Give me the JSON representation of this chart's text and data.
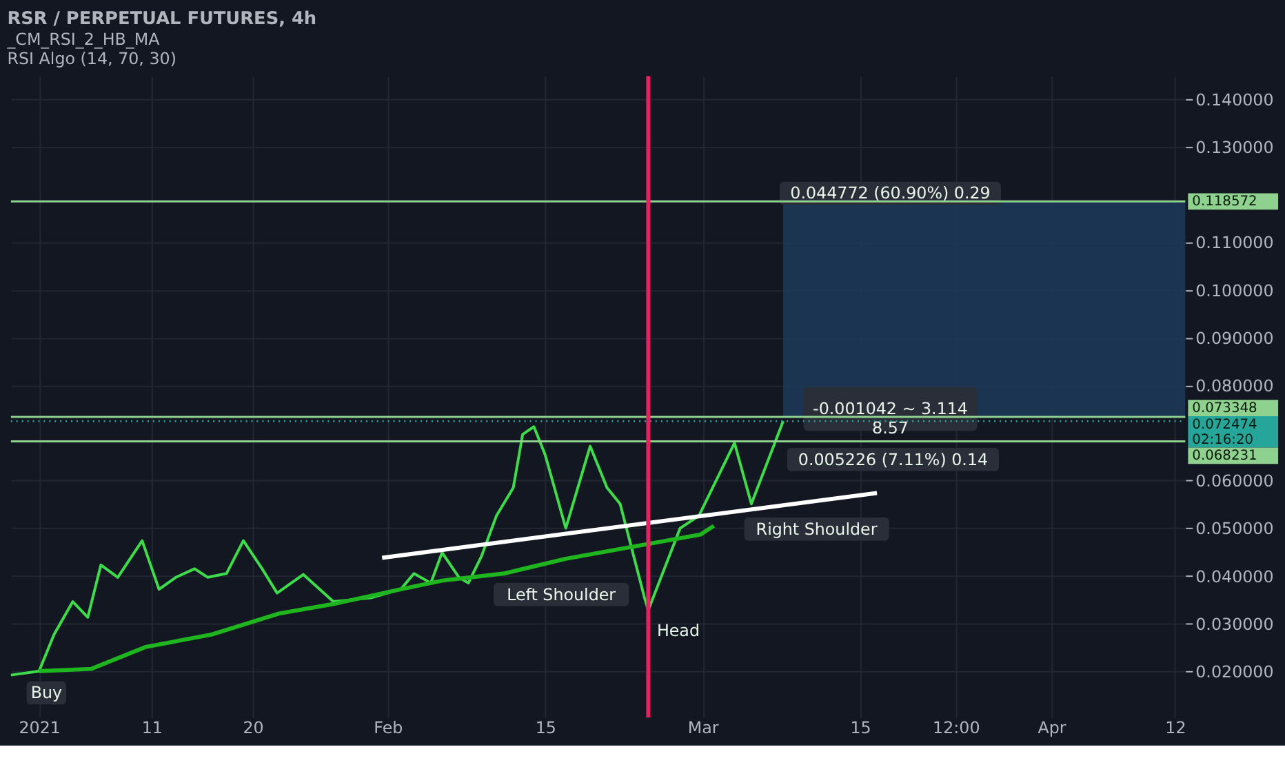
{
  "chart_data": {
    "type": "line",
    "title": "RSR / PERPETUAL FUTURES, 4h",
    "subtitle": [
      "_CM_RSI_2_HB_MA",
      "RSI Algo (14, 70, 30)"
    ],
    "xlim": [
      "2020-12-29T12:00",
      "2021-04-12T22:00"
    ],
    "xticks": [
      {
        "value": "2021-01-01",
        "label": "2021"
      },
      {
        "value": "2021-01-11",
        "label": "11"
      },
      {
        "value": "2021-01-20",
        "label": "20"
      },
      {
        "value": "2021-02-01",
        "label": "Feb"
      },
      {
        "value": "2021-02-15",
        "label": "15"
      },
      {
        "value": "2021-03-01",
        "label": "Mar"
      },
      {
        "value": "2021-03-15",
        "label": "15"
      },
      {
        "value": "2021-03-23T12:00",
        "label": "12:00"
      },
      {
        "value": "2021-04-01",
        "label": "Apr"
      },
      {
        "value": "2021-04-12",
        "label": "12"
      }
    ],
    "ylim": [
      0.0103,
      0.1449
    ],
    "yticks": [
      {
        "value": 0.02,
        "label": "0.020000"
      },
      {
        "value": 0.03,
        "label": "0.030000"
      },
      {
        "value": 0.04,
        "label": "0.040000"
      },
      {
        "value": 0.05,
        "label": "0.050000"
      },
      {
        "value": 0.06,
        "label": "0.060000"
      },
      {
        "value": 0.08,
        "label": "0.080000"
      },
      {
        "value": 0.09,
        "label": "0.090000"
      },
      {
        "value": 0.1,
        "label": "0.100000"
      },
      {
        "value": 0.11,
        "label": "0.110000"
      },
      {
        "value": 0.13,
        "label": "0.130000"
      },
      {
        "value": 0.14,
        "label": "0.140000"
      }
    ],
    "series": [
      {
        "color": "#3ddc4a",
        "x": [
          "2020-12-29T12:00",
          "2021-01-01",
          "2021-01-02T08:00",
          "2021-01-04",
          "2021-01-05T08:00",
          "2021-01-06T12:00",
          "2021-01-08",
          "2021-01-10T04:00",
          "2021-01-11T16:00",
          "2021-01-13T04:00",
          "2021-01-14T20:00",
          "2021-01-16",
          "2021-01-17T16:00",
          "2021-01-19T04:00",
          "2021-01-20T20:00",
          "2021-01-22T04:00",
          "2021-01-24T12:00",
          "2021-01-27T04:00",
          "2021-01-30T12:00",
          "2021-02-02T04:00",
          "2021-02-03T08:00",
          "2021-02-04T20:00",
          "2021-02-05T20:00",
          "2021-02-07T08:00",
          "2021-02-08T04:00",
          "2021-02-09T08:00",
          "2021-02-10T16:00",
          "2021-02-12T04:00",
          "2021-02-13",
          "2021-02-14",
          "2021-02-15",
          "2021-02-16T20:00",
          "2021-02-19",
          "2021-02-20T12:00",
          "2021-02-21T16:00",
          "2021-02-23T20:00",
          "2021-02-24T04:00",
          "2021-02-27",
          "2021-02-28T16:00",
          "2021-03-03T20:00",
          "2021-03-05T08:00",
          "2021-03-08T04:00"
        ],
        "values": [
          0.0192,
          0.02,
          0.0277,
          0.0346,
          0.0313,
          0.0423,
          0.0397,
          0.0474,
          0.0372,
          0.0397,
          0.0415,
          0.0397,
          0.0405,
          0.0474,
          0.0415,
          0.0364,
          0.0403,
          0.0346,
          0.0354,
          0.0372,
          0.0405,
          0.0385,
          0.0449,
          0.0397,
          0.0385,
          0.0441,
          0.0526,
          0.0585,
          0.0697,
          0.0713,
          0.0654,
          0.05,
          0.0672,
          0.0585,
          0.0551,
          0.0354,
          0.0328,
          0.05,
          0.0526,
          0.0679,
          0.0551,
          0.0725
        ]
      },
      {
        "color": "#1fb51f",
        "x": [
          "2021-01-01",
          "2021-01-05T16:00",
          "2021-01-10T12:00",
          "2021-01-16T08:00",
          "2021-01-22T08:00",
          "2021-01-27T04:00",
          "2021-02-02T04:00",
          "2021-02-05T20:00",
          "2021-02-11T08:00",
          "2021-02-16T20:00",
          "2021-02-28T20:00",
          "2021-03-02"
        ],
        "values": [
          0.02,
          0.0205,
          0.0251,
          0.0277,
          0.0321,
          0.0341,
          0.0372,
          0.039,
          0.0405,
          0.0436,
          0.0487,
          0.0505
        ]
      },
      {
        "type": "line",
        "color": "#ffffff",
        "x": [
          "2021-01-31T12:00",
          "2021-03-16T12:00"
        ],
        "values": [
          0.0438,
          0.0574
        ]
      }
    ],
    "ref_lines": [
      {
        "axis": "y",
        "value": 0.118572,
        "label": "0.118572",
        "color": "#8fd18f"
      },
      {
        "axis": "y",
        "value": 0.073348,
        "label": "0.073348",
        "color": "#8fd18f"
      },
      {
        "axis": "y",
        "value": 0.072474,
        "label": "0.072474\n02:16:20",
        "color": "#26a69a",
        "line_style": "dotted"
      },
      {
        "axis": "y",
        "value": 0.068231,
        "label": "0.068231",
        "color": "#8fd18f"
      },
      {
        "axis": "x",
        "value": "2021-02-24T04:00",
        "color": "#e91e63"
      }
    ],
    "bands": [
      {
        "axis": "y",
        "from": 0.073348,
        "to": 0.118572,
        "color": "#1c3a5a"
      }
    ],
    "annotations": [
      "Left Shoulder",
      {
        "text": "Head",
        "x": "2021-02-24T04:00",
        "y": 0.0328
      },
      "Right Shoulder",
      "Buy",
      "0.044772 (60.90%) 0.29",
      "-0.001042 ~ 3.114\n8.57",
      "0.005226 (7.11%) 0.14"
    ],
    "grid": true,
    "marker": "none",
    "line_style": "solid"
  }
}
